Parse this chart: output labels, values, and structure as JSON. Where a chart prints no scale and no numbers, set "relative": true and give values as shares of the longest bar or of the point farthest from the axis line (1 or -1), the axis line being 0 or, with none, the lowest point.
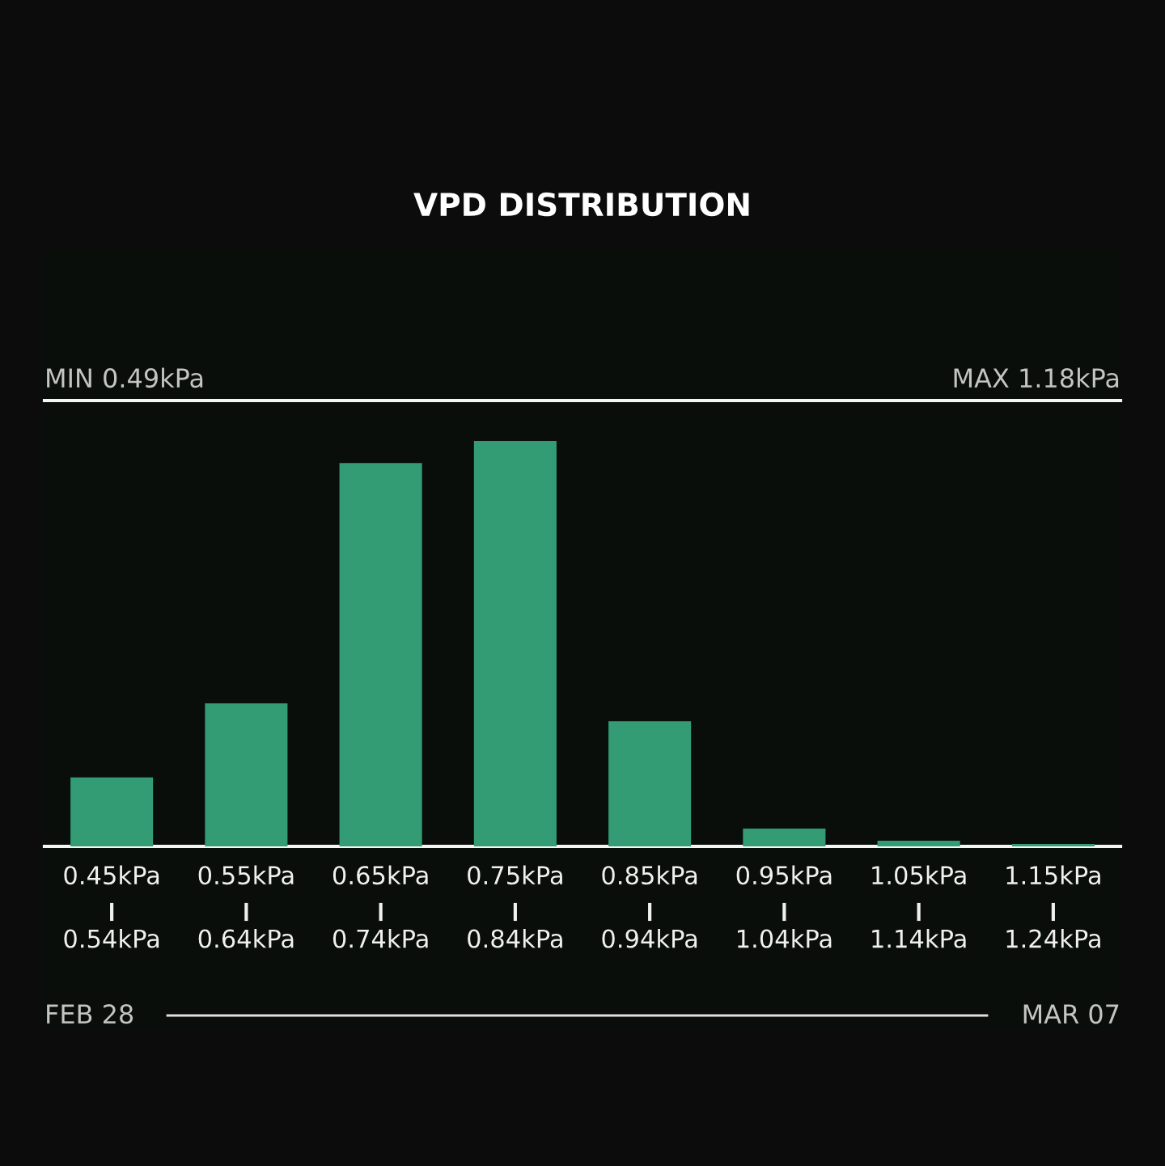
{
  "chart_data": {
    "type": "bar",
    "title": "VPD DISTRIBUTION",
    "relative": true,
    "categories": [
      "0.45kPa\n0.54kPa",
      "0.55kPa\n0.64kPa",
      "0.65kPa\n0.74kPa",
      "0.75kPa\n0.84kPa",
      "0.85kPa\n0.94kPa",
      "0.95kPa\n1.04kPa",
      "1.05kPa\n1.14kPa",
      "1.15kPa\n1.24kPa"
    ],
    "values": [
      0.17,
      0.353,
      0.946,
      1,
      0.309,
      0.044,
      0.014,
      0.006
    ],
    "color": "#339c74",
    "annotations": [
      "MIN 0.49kPa",
      "MAX 1.18kPa",
      "FEB 28",
      "MAR 07"
    ],
    "tick_labels": "x"
  }
}
